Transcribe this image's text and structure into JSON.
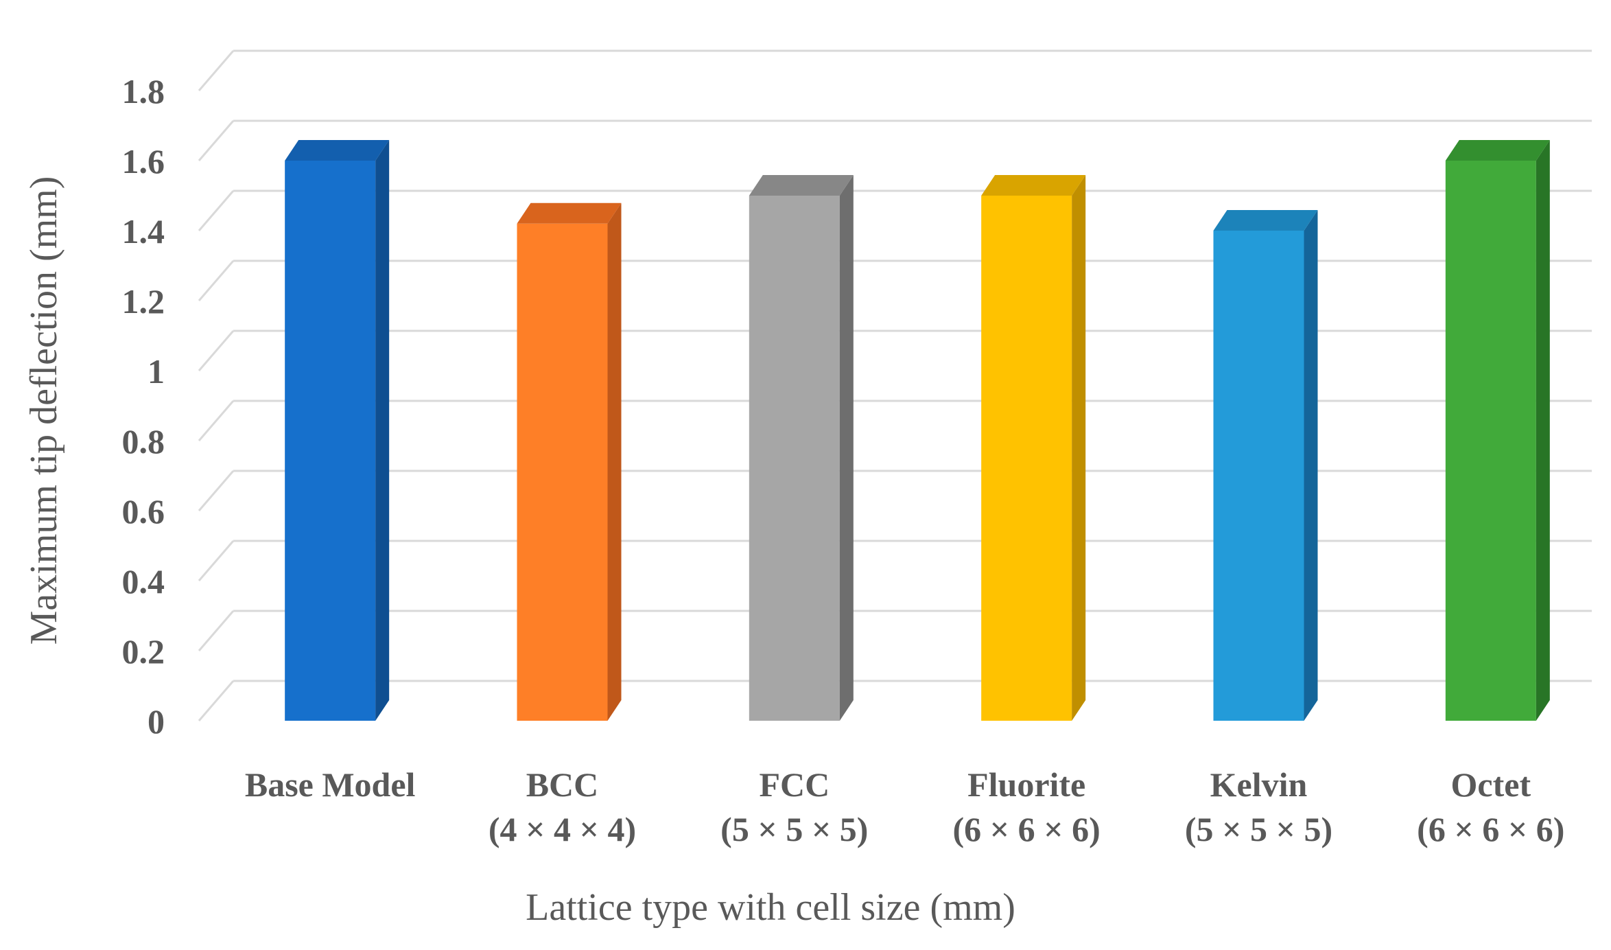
{
  "chart_data": {
    "type": "bar",
    "style": "3d-column",
    "title": "",
    "xlabel": "Lattice type with cell size (mm)",
    "ylabel": "Maximum tip deflection (mm)",
    "ylim": [
      0,
      1.8
    ],
    "ytick_step": 0.2,
    "yticks": [
      "0",
      "0.2",
      "0.4",
      "0.6",
      "0.8",
      "1",
      "1.2",
      "1.4",
      "1.6",
      "1.8"
    ],
    "grid": true,
    "legend": "none",
    "categories": [
      {
        "name": "Base Model",
        "cell": ""
      },
      {
        "name": "BCC",
        "cell": "(4 × 4 × 4)"
      },
      {
        "name": "FCC",
        "cell": "(5 × 5 × 5)"
      },
      {
        "name": "Fluorite",
        "cell": "(6 × 6 × 6)"
      },
      {
        "name": "Kelvin",
        "cell": "(5 × 5 × 5)"
      },
      {
        "name": "Octet",
        "cell": "(6 × 6 × 6)"
      }
    ],
    "values": [
      1.6,
      1.42,
      1.5,
      1.5,
      1.4,
      1.6
    ],
    "colors": [
      {
        "front": "#1670CC",
        "side": "#0F4F91",
        "top": "#135FAE"
      },
      {
        "front": "#FE7F27",
        "side": "#C0581A",
        "top": "#D9641D"
      },
      {
        "front": "#A6A6A6",
        "side": "#6E6E6E",
        "top": "#878787"
      },
      {
        "front": "#FFC200",
        "side": "#C08F00",
        "top": "#D9A400"
      },
      {
        "front": "#239BD9",
        "side": "#14659A",
        "top": "#1C83BA"
      },
      {
        "front": "#41AA3A",
        "side": "#287526",
        "top": "#338F2F"
      }
    ],
    "gridline_color": "#D9D9D9",
    "text_color": "#595959"
  }
}
